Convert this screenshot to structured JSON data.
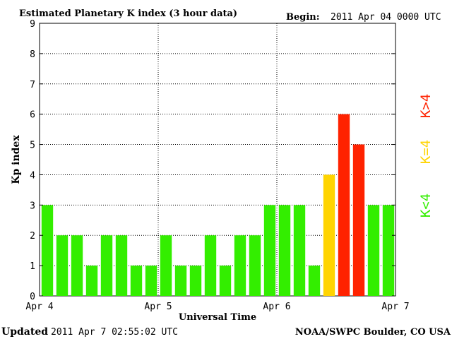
{
  "header": {
    "title": "Estimated Planetary K index (3 hour data)",
    "begin_label": "Begin:",
    "begin_value": "2011 Apr 04 0000 UTC"
  },
  "footer": {
    "updated_label": "Updated",
    "updated_value": "2011 Apr  7 02:55:02 UTC",
    "source": "NOAA/SWPC Boulder, CO USA"
  },
  "legend": {
    "low": {
      "text": "K<4",
      "color": "#33ee00"
    },
    "mid": {
      "text": "K=4",
      "color": "#ffd400"
    },
    "high": {
      "text": "K>4",
      "color": "#ff2200"
    }
  },
  "chart_data": {
    "type": "bar",
    "title": "Estimated Planetary K index (3 hour data)",
    "xlabel": "Universal Time",
    "ylabel": "Kp index",
    "ylim": [
      0,
      9
    ],
    "yticks": [
      0,
      1,
      2,
      3,
      4,
      5,
      6,
      7,
      8,
      9
    ],
    "xticks": [
      "Apr 4",
      "Apr 5",
      "Apr 6",
      "Apr 7"
    ],
    "interval_hours": 3,
    "grid": "dotted",
    "colors": {
      "below4": "#33ee00",
      "equal4": "#ffd400",
      "above4": "#ff2200"
    },
    "values": [
      3,
      2,
      2,
      1,
      2,
      2,
      1,
      1,
      2,
      1,
      1,
      2,
      1,
      2,
      2,
      3,
      3,
      3,
      1,
      4,
      6,
      5,
      3,
      3
    ]
  }
}
